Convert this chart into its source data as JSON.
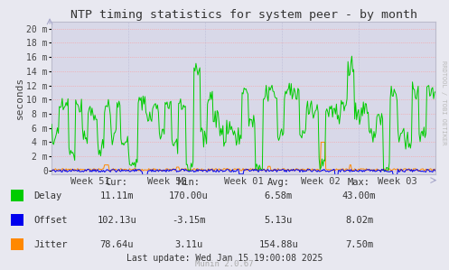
{
  "title": "NTP timing statistics for system peer - by month",
  "ylabel": "seconds",
  "bg_color": "#e8e8f0",
  "plot_bg_color": "#d8d8e8",
  "grid_color": "#ff9999",
  "ytick_labels": [
    "0",
    "2 m",
    "4 m",
    "6 m",
    "8 m",
    "10 m",
    "12 m",
    "14 m",
    "16 m",
    "18 m",
    "20 m"
  ],
  "ytick_values": [
    0.0,
    0.002,
    0.004,
    0.006,
    0.008,
    0.01,
    0.012,
    0.014,
    0.016,
    0.018,
    0.02
  ],
  "ylim": [
    -0.0005,
    0.021
  ],
  "xtick_labels": [
    "Week 51",
    "Week 52",
    "Week 01",
    "Week 02",
    "Week 03"
  ],
  "delay_color": "#00cc00",
  "offset_color": "#0000ee",
  "jitter_color": "#ff8800",
  "stats_header": [
    "Cur:",
    "Min:",
    "Avg:",
    "Max:"
  ],
  "stats_delay": [
    "11.11m",
    "170.00u",
    "6.58m",
    "43.00m"
  ],
  "stats_offset": [
    "102.13u",
    "-3.15m",
    "5.13u",
    "8.02m"
  ],
  "stats_jitter": [
    "78.64u",
    "3.11u",
    "154.88u",
    "7.50m"
  ],
  "last_update": "Last update: Wed Jan 15 19:00:08 2025",
  "munin_version": "Munin 2.0.67",
  "watermark": "RRDTOOL / TOBI OETIKER"
}
